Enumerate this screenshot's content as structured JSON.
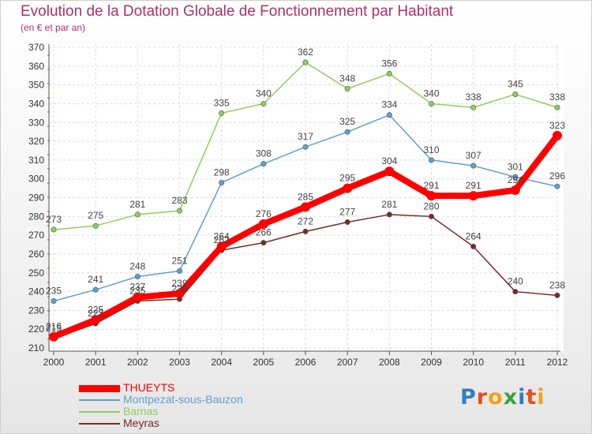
{
  "title": "Evolution de la Dotation Globale de Fonctionnement par Habitant",
  "subtitle": "(en € et par an)",
  "logo": {
    "text": "Proxiti",
    "letter_colors": [
      "#2e7fc4",
      "#e94e1b",
      "#f2a21a",
      "#3aa23a",
      "#2e7fc4",
      "#e94e1b",
      "#f2a21a"
    ]
  },
  "chart_data": {
    "type": "line",
    "title": "Evolution de la Dotation Globale de Fonctionnement par Habitant",
    "subtitle": "(en € et par an)",
    "x": [
      "2000",
      "2001",
      "2002",
      "2003",
      "2004",
      "2005",
      "2006",
      "2007",
      "2008",
      "2009",
      "2010",
      "2011",
      "2012"
    ],
    "ylim": [
      210,
      370
    ],
    "yticks": [
      210,
      220,
      230,
      240,
      250,
      260,
      270,
      280,
      290,
      300,
      310,
      320,
      330,
      340,
      350,
      360,
      370
    ],
    "grid": true,
    "legend_position": "bottom-left",
    "series": [
      {
        "name": "Barnas",
        "color": "#8ccf5a",
        "values": [
          273,
          275,
          281,
          283,
          335,
          340,
          362,
          348,
          356,
          340,
          338,
          345,
          338
        ]
      },
      {
        "name": "Montpezat-sous-Bauzon",
        "color": "#5f9fd3",
        "values": [
          235,
          241,
          248,
          251,
          298,
          308,
          317,
          325,
          334,
          310,
          307,
          301,
          296
        ]
      },
      {
        "name": "Meyras",
        "color": "#7a2a2a",
        "values": [
          215,
          223,
          235,
          236,
          262,
          266,
          272,
          277,
          281,
          280,
          264,
          240,
          238
        ]
      },
      {
        "name": "THUEYTS",
        "color": "#ff0000",
        "values": [
          216,
          225,
          237,
          239,
          264,
          276,
          285,
          295,
          304,
          291,
          291,
          294,
          323
        ]
      }
    ],
    "legend": [
      "THUEYTS",
      "Montpezat-sous-Bauzon",
      "Barnas",
      "Meyras"
    ]
  }
}
